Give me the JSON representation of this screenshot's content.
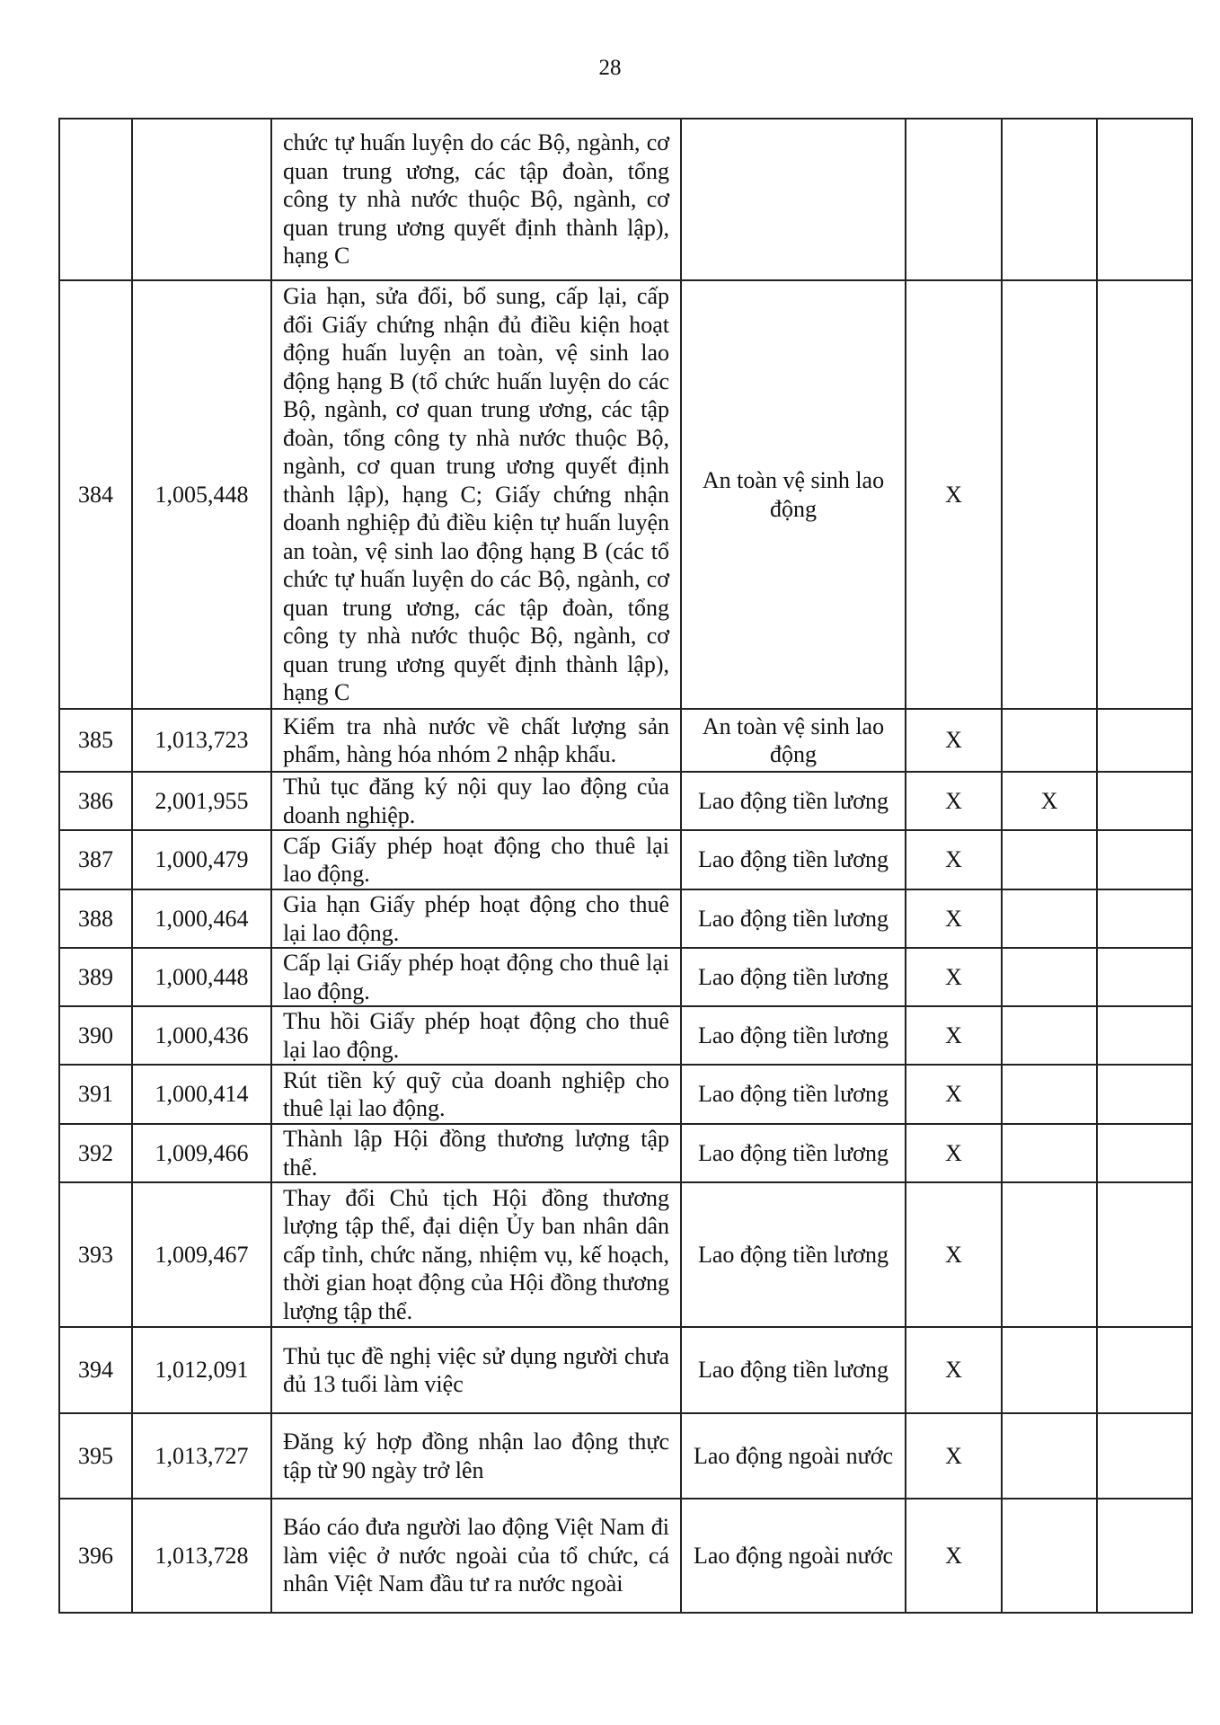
{
  "page_number": "28",
  "rows": [
    {
      "stt": "",
      "code": "",
      "desc": "chức tự huấn luyện do các Bộ, ngành, cơ quan trung ương, các tập đoàn, tổng công ty nhà nước thuộc Bộ, ngành, cơ quan trung ương quyết định thành lập), hạng C",
      "field": "",
      "c1": "",
      "c2": "",
      "c3": ""
    },
    {
      "stt": "384",
      "code": "1,005,448",
      "desc": "Gia hạn, sửa đổi, bổ sung, cấp lại, cấp đổi Giấy chứng nhận đủ điều kiện hoạt động huấn luyện an toàn, vệ sinh lao động hạng B (tổ chức huấn luyện do các Bộ, ngành, cơ quan trung ương, các tập đoàn, tổng công ty nhà nước thuộc Bộ, ngành, cơ quan trung ương quyết định thành lập), hạng C; Giấy chứng nhận doanh nghiệp đủ điều kiện tự huấn luyện an toàn, vệ sinh lao động hạng B (các tổ chức tự huấn luyện do các Bộ, ngành, cơ quan trung ương, các tập đoàn, tổng công ty nhà nước thuộc Bộ, ngành, cơ quan trung ương quyết định thành lập), hạng C",
      "field": "An toàn vệ sinh lao động",
      "c1": "X",
      "c2": "",
      "c3": ""
    },
    {
      "stt": "385",
      "code": "1,013,723",
      "desc": "Kiểm tra nhà nước về chất lượng sản phẩm, hàng hóa nhóm 2 nhập khẩu.",
      "field": "An toàn vệ sinh lao động",
      "c1": "X",
      "c2": "",
      "c3": ""
    },
    {
      "stt": "386",
      "code": "2,001,955",
      "desc": "Thủ tục đăng ký nội quy lao động của doanh nghiệp.",
      "field": "Lao động tiền lương",
      "c1": "X",
      "c2": "X",
      "c3": ""
    },
    {
      "stt": "387",
      "code": "1,000,479",
      "desc": "Cấp Giấy phép hoạt động cho thuê lại lao động.",
      "field": "Lao động tiền lương",
      "c1": "X",
      "c2": "",
      "c3": ""
    },
    {
      "stt": "388",
      "code": "1,000,464",
      "desc": "Gia hạn Giấy phép hoạt động cho thuê lại lao động.",
      "field": "Lao động tiền lương",
      "c1": "X",
      "c2": "",
      "c3": ""
    },
    {
      "stt": "389",
      "code": "1,000,448",
      "desc": "Cấp lại Giấy phép hoạt động cho thuê lại lao động.",
      "field": "Lao động tiền lương",
      "c1": "X",
      "c2": "",
      "c3": ""
    },
    {
      "stt": "390",
      "code": "1,000,436",
      "desc": "Thu hồi Giấy phép hoạt động cho thuê lại lao động.",
      "field": "Lao động tiền lương",
      "c1": "X",
      "c2": "",
      "c3": ""
    },
    {
      "stt": "391",
      "code": "1,000,414",
      "desc": "Rút tiền ký quỹ của doanh nghiệp cho thuê lại lao động.",
      "field": "Lao động tiền lương",
      "c1": "X",
      "c2": "",
      "c3": ""
    },
    {
      "stt": "392",
      "code": "1,009,466",
      "desc": "Thành lập Hội đồng thương lượng tập thể.",
      "field": "Lao động tiền lương",
      "c1": "X",
      "c2": "",
      "c3": ""
    },
    {
      "stt": "393",
      "code": "1,009,467",
      "desc": "Thay đổi Chủ tịch Hội đồng thương lượng tập thể, đại diện Ủy ban nhân dân cấp tỉnh, chức năng, nhiệm vụ, kế hoạch, thời gian hoạt động của Hội đồng thương lượng tập thể.",
      "field": "Lao động tiền lương",
      "c1": "X",
      "c2": "",
      "c3": ""
    },
    {
      "stt": "394",
      "code": "1,012,091",
      "desc": "Thủ tục đề nghị việc sử dụng người chưa đủ 13 tuổi làm việc",
      "field": "Lao động tiền lương",
      "c1": "X",
      "c2": "",
      "c3": ""
    },
    {
      "stt": "395",
      "code": "1,013,727",
      "desc": "Đăng ký hợp đồng nhận lao động thực tập từ 90 ngày trở lên",
      "field": "Lao động ngoài nước",
      "c1": "X",
      "c2": "",
      "c3": ""
    },
    {
      "stt": "396",
      "code": "1,013,728",
      "desc": "Báo cáo đưa người lao động Việt Nam đi làm việc ở nước ngoài của tổ chức, cá nhân Việt Nam đầu tư ra nước ngoài",
      "field": "Lao động ngoài nước",
      "c1": "X",
      "c2": "",
      "c3": ""
    }
  ]
}
